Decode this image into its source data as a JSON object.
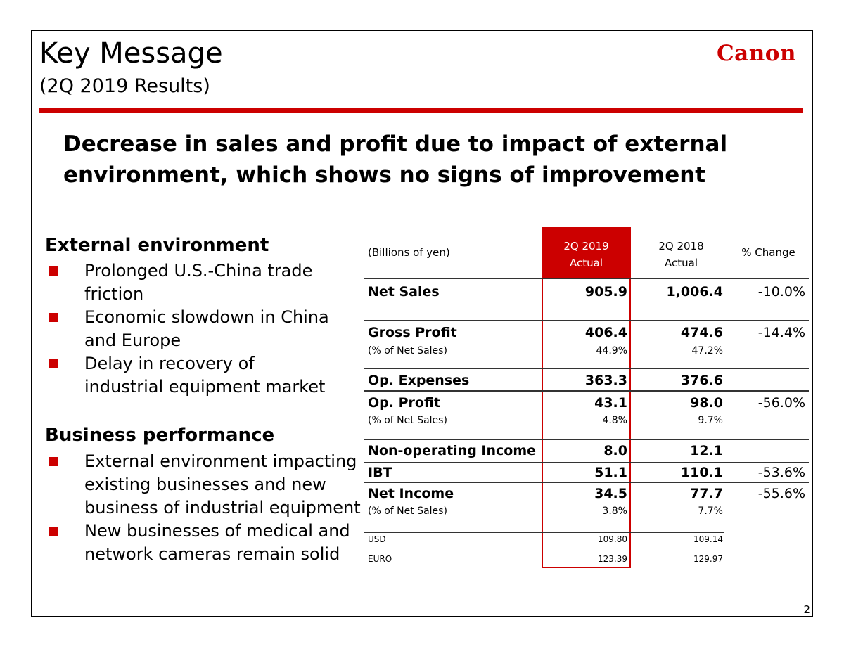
{
  "header": {
    "title": "Key Message",
    "subtitle": "(2Q 2019 Results)",
    "logo": "Canon"
  },
  "headline": [
    "Decrease in sales and profit due to impact of external",
    "environment, which shows no signs of improvement"
  ],
  "sections": [
    {
      "heading": "External environment",
      "bullets": [
        "Prolonged U.S.-China trade friction",
        "Economic slowdown in China and Europe",
        "Delay in recovery of industrial equipment market"
      ]
    },
    {
      "heading": "Business performance",
      "bullets": [
        "External environment impacting existing businesses and new business of industrial equipment",
        "New businesses of medical and network cameras remain solid"
      ]
    }
  ],
  "table": {
    "header": {
      "unit": "(Billions of yen)",
      "y2019": "2Q 2019 Actual",
      "y2018": "2Q 2018 Actual",
      "change": "% Change"
    },
    "rows": [
      {
        "label": "Net Sales",
        "y2019": "905.9",
        "y2018": "1,006.4",
        "change": "-10.0%"
      },
      {
        "label": "Gross Profit",
        "y2019": "406.4",
        "y2018": "474.6",
        "change": "-14.4%"
      },
      {
        "label": "(% of Net Sales)",
        "y2019": "44.9%",
        "y2018": "47.2%"
      },
      {
        "label": "Op. Expenses",
        "y2019": "363.3",
        "y2018": "376.6"
      },
      {
        "label": "Op. Profit",
        "y2019": "43.1",
        "y2018": "98.0",
        "change": "-56.0%"
      },
      {
        "label": "(% of Net Sales)",
        "y2019": "4.8%",
        "y2018": "9.7%"
      },
      {
        "label": "Non-operating Income",
        "y2019": "8.0",
        "y2018": "12.1"
      },
      {
        "label": "IBT",
        "y2019": "51.1",
        "y2018": "110.1",
        "change": "-53.6%"
      },
      {
        "label": "Net Income",
        "y2019": "34.5",
        "y2018": "77.7",
        "change": "-55.6%"
      },
      {
        "label": "(% of Net Sales)",
        "y2019": "3.8%",
        "y2018": "7.7%"
      },
      {
        "label": "USD",
        "y2019": "109.80",
        "y2018": "109.14"
      },
      {
        "label": "EURO",
        "y2019": "123.39",
        "y2018": "129.97"
      }
    ]
  },
  "page_number": "2"
}
